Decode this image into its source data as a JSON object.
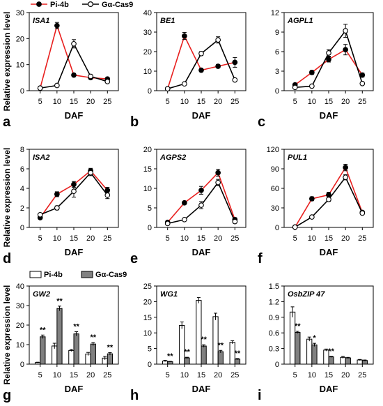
{
  "figure": {
    "ylabel": "Relative expression level",
    "xlabel": "DAF"
  },
  "legends": {
    "line": [
      {
        "name": "Pi-4b",
        "color": "#e8201f",
        "marker": "filled-circle"
      },
      {
        "name": "Gα-Cas9",
        "color": "#000000",
        "marker": "open-circle"
      }
    ],
    "bar": [
      {
        "name": "Pi-4b",
        "fill": "#ffffff"
      },
      {
        "name": "Gα-Cas9",
        "fill": "#808080"
      }
    ]
  },
  "chart_data": [
    {
      "panel": "a",
      "type": "line",
      "title": "ISA1",
      "xlabel": "DAF",
      "x": [
        5,
        10,
        15,
        20,
        25
      ],
      "ylim": [
        0,
        30
      ],
      "yticks": [
        0,
        10,
        20,
        30
      ],
      "series": [
        {
          "name": "Pi-4b",
          "values": [
            1,
            25,
            6,
            5,
            4.5
          ],
          "errors": [
            0.3,
            1.2,
            0.6,
            0.5,
            0.5
          ]
        },
        {
          "name": "Gα-Cas9",
          "values": [
            1,
            2,
            18,
            5.5,
            3.5
          ],
          "errors": [
            0.3,
            0.4,
            1.6,
            0.6,
            0.5
          ]
        }
      ]
    },
    {
      "panel": "b",
      "type": "line",
      "title": "BE1",
      "xlabel": "DAF",
      "x": [
        5,
        10,
        15,
        20,
        25
      ],
      "ylim": [
        0,
        40
      ],
      "yticks": [
        0,
        10,
        20,
        30,
        40
      ],
      "series": [
        {
          "name": "Pi-4b",
          "values": [
            1,
            28,
            10.5,
            12.5,
            14.5
          ],
          "errors": [
            0.3,
            1.8,
            0.8,
            0.9,
            2.5
          ]
        },
        {
          "name": "Gα-Cas9",
          "values": [
            1,
            3.5,
            19,
            26,
            5.5
          ],
          "errors": [
            0.3,
            0.5,
            1.0,
            1.6,
            0.7
          ]
        }
      ]
    },
    {
      "panel": "c",
      "type": "line",
      "title": "AGPL1",
      "xlabel": "DAF",
      "x": [
        5,
        10,
        15,
        20,
        25
      ],
      "ylim": [
        0,
        12
      ],
      "yticks": [
        0,
        3,
        6,
        9,
        12
      ],
      "series": [
        {
          "name": "Pi-4b",
          "values": [
            0.9,
            2.8,
            4.8,
            6.3,
            2.4
          ],
          "errors": [
            0.2,
            0.3,
            0.4,
            0.8,
            0.3
          ]
        },
        {
          "name": "Gα-Cas9",
          "values": [
            0.5,
            0.7,
            5.8,
            9.2,
            1.1
          ],
          "errors": [
            0.1,
            0.2,
            0.5,
            1.0,
            0.2
          ]
        }
      ]
    },
    {
      "panel": "d",
      "type": "line",
      "title": "ISA2",
      "xlabel": "DAF",
      "x": [
        5,
        10,
        15,
        20,
        25
      ],
      "ylim": [
        0,
        8
      ],
      "yticks": [
        0,
        2,
        4,
        6,
        8
      ],
      "series": [
        {
          "name": "Pi-4b",
          "values": [
            1.0,
            3.4,
            4.4,
            5.8,
            3.8
          ],
          "errors": [
            0.15,
            0.25,
            0.3,
            0.25,
            0.3
          ]
        },
        {
          "name": "Gα-Cas9",
          "values": [
            1.3,
            2.0,
            3.7,
            5.6,
            3.3
          ],
          "errors": [
            0.15,
            0.2,
            0.6,
            0.3,
            0.35
          ]
        }
      ]
    },
    {
      "panel": "e",
      "type": "line",
      "title": "AGPS2",
      "xlabel": "DAF",
      "x": [
        5,
        10,
        15,
        20,
        25
      ],
      "ylim": [
        0,
        20
      ],
      "yticks": [
        0,
        5,
        10,
        15,
        20
      ],
      "series": [
        {
          "name": "Pi-4b",
          "values": [
            1.3,
            6.3,
            9.5,
            14,
            2
          ],
          "errors": [
            0.3,
            0.4,
            1.0,
            0.9,
            0.5
          ]
        },
        {
          "name": "Gα-Cas9",
          "values": [
            1,
            2,
            5.7,
            11.5,
            1.5
          ],
          "errors": [
            0.2,
            0.3,
            0.9,
            0.8,
            0.4
          ]
        }
      ]
    },
    {
      "panel": "f",
      "type": "line",
      "title": "PUL1",
      "xlabel": "DAF",
      "x": [
        5,
        10,
        15,
        20,
        25
      ],
      "ylim": [
        0,
        120
      ],
      "yticks": [
        0,
        30,
        60,
        90,
        120
      ],
      "series": [
        {
          "name": "Pi-4b",
          "values": [
            0.5,
            44,
            50,
            92,
            23
          ],
          "errors": [
            0.3,
            3,
            4,
            5,
            2
          ]
        },
        {
          "name": "Gα-Cas9",
          "values": [
            0.5,
            16,
            43,
            77,
            22
          ],
          "errors": [
            0.3,
            2,
            3,
            4,
            2
          ]
        }
      ]
    },
    {
      "panel": "g",
      "type": "bar",
      "title": "GW2",
      "xlabel": "DAF",
      "categories": [
        "5",
        "10",
        "15",
        "20",
        "25"
      ],
      "ylim": [
        0,
        40
      ],
      "yticks": [
        0,
        10,
        20,
        30,
        40
      ],
      "series": [
        {
          "name": "Pi-4b",
          "values": [
            0.8,
            9.3,
            7,
            5.2,
            3.1
          ],
          "errors": [
            0.2,
            1.4,
            0.5,
            0.8,
            0.9
          ]
        },
        {
          "name": "Gα-Cas9",
          "values": [
            14,
            28.5,
            15.5,
            10.3,
            5.3
          ],
          "errors": [
            0.9,
            1.2,
            1.1,
            0.8,
            0.6
          ]
        }
      ],
      "significance": [
        "**",
        "**",
        "**",
        "**",
        "**"
      ]
    },
    {
      "panel": "h",
      "type": "bar",
      "title": "WG1",
      "xlabel": "DAF",
      "categories": [
        "5",
        "10",
        "15",
        "20",
        "25"
      ],
      "ylim": [
        0,
        25
      ],
      "yticks": [
        0,
        5,
        10,
        15,
        20,
        25
      ],
      "series": [
        {
          "name": "Pi-4b",
          "values": [
            1,
            12.4,
            20.4,
            15.2,
            7
          ],
          "errors": [
            0.2,
            1.1,
            0.9,
            1.1,
            0.5
          ]
        },
        {
          "name": "Gα-Cas9",
          "values": [
            0.8,
            2,
            5.8,
            4,
            1.6
          ],
          "errors": [
            0.1,
            0.2,
            0.4,
            0.4,
            0.2
          ]
        }
      ],
      "significance": [
        "**",
        "**",
        "**",
        "**",
        "**"
      ]
    },
    {
      "panel": "i",
      "type": "bar",
      "title": "OsbZIP 47",
      "xlabel": "DAF",
      "categories": [
        "5",
        "10",
        "15",
        "20",
        "25"
      ],
      "ylim": [
        0,
        1.5
      ],
      "yticks": [
        0,
        0.3,
        0.6,
        0.9,
        1.2,
        1.5
      ],
      "ytickLabels": [
        "0",
        "0.3",
        "0.6",
        "0.9",
        "1.2",
        "1.5"
      ],
      "series": [
        {
          "name": "Pi-4b",
          "values": [
            1.0,
            0.48,
            0.27,
            0.13,
            0.08
          ],
          "errors": [
            0.1,
            0.04,
            0.02,
            0.02,
            0.01
          ]
        },
        {
          "name": "Gα-Cas9",
          "values": [
            0.61,
            0.37,
            0.14,
            0.12,
            0.07
          ],
          "errors": [
            0.02,
            0.03,
            0.01,
            0.01,
            0.01
          ]
        }
      ],
      "significance": [
        "**",
        "*",
        "**",
        "",
        ""
      ]
    }
  ]
}
